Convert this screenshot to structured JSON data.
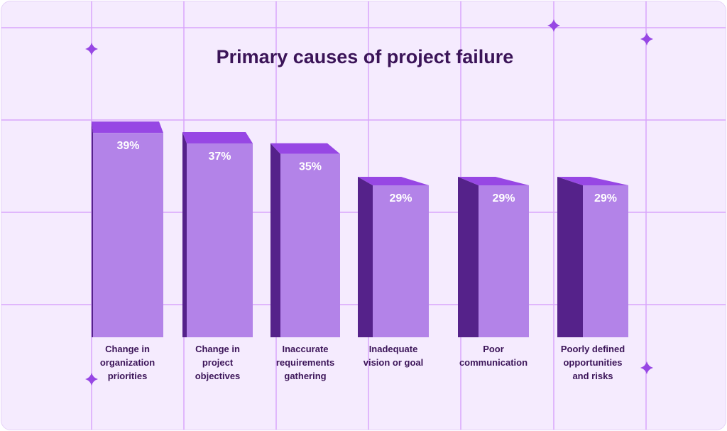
{
  "chart_data": {
    "type": "bar",
    "title": "Primary causes of project failure",
    "categories": [
      [
        "Change in",
        "organization",
        "priorities"
      ],
      [
        "Change in",
        "project",
        "objectives"
      ],
      [
        "Inaccurate",
        "requirements",
        "gathering"
      ],
      [
        "Inadequate",
        "vision or goal"
      ],
      [
        "Poor",
        "communication"
      ],
      [
        "Poorly defined",
        "opportunities",
        "and risks"
      ]
    ],
    "values": [
      39,
      37,
      35,
      29,
      29,
      29
    ],
    "value_labels": [
      "39%",
      "37%",
      "35%",
      "29%",
      "29%",
      "29%"
    ],
    "unit": "%",
    "ylim": [
      0,
      40
    ],
    "grid": true,
    "legend": "none",
    "colors": {
      "background": "#f5ebfe",
      "grid": "#d9a6fb",
      "bar_front": "#b383e8",
      "bar_top": "#9747e4",
      "bar_side": "#55228a",
      "text": "#3b1458",
      "star": "#9747e4"
    }
  }
}
